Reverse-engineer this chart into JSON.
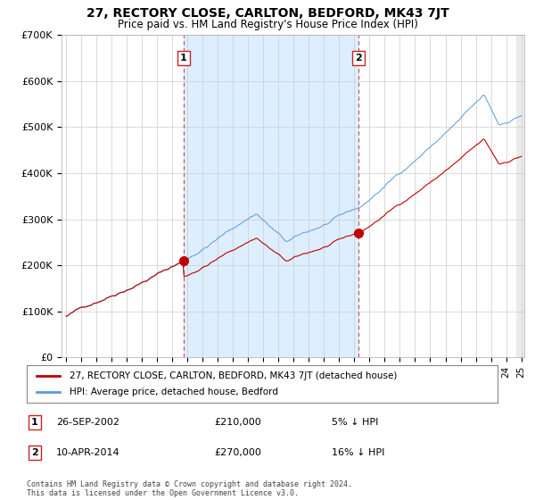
{
  "title": "27, RECTORY CLOSE, CARLTON, BEDFORD, MK43 7JT",
  "subtitle": "Price paid vs. HM Land Registry's House Price Index (HPI)",
  "legend_line1": "27, RECTORY CLOSE, CARLTON, BEDFORD, MK43 7JT (detached house)",
  "legend_line2": "HPI: Average price, detached house, Bedford",
  "transaction1_date": "26-SEP-2002",
  "transaction1_price": "£210,000",
  "transaction1_note": "5% ↓ HPI",
  "transaction2_date": "10-APR-2014",
  "transaction2_price": "£270,000",
  "transaction2_note": "16% ↓ HPI",
  "footer": "Contains HM Land Registry data © Crown copyright and database right 2024.\nThis data is licensed under the Open Government Licence v3.0.",
  "hpi_color": "#5b9bd5",
  "price_color": "#c00000",
  "background_color": "#ffffff",
  "shade_color": "#ddeeff",
  "ylim": [
    0,
    700000
  ],
  "yticks": [
    0,
    100000,
    200000,
    300000,
    400000,
    500000,
    600000,
    700000
  ],
  "ytick_labels": [
    "£0",
    "£100K",
    "£200K",
    "£300K",
    "£400K",
    "£500K",
    "£600K",
    "£700K"
  ],
  "transaction1_x": 2002.74,
  "transaction1_y": 210000,
  "transaction2_x": 2014.27,
  "transaction2_y": 270000,
  "xmin": 1995.0,
  "xmax": 2025.0
}
